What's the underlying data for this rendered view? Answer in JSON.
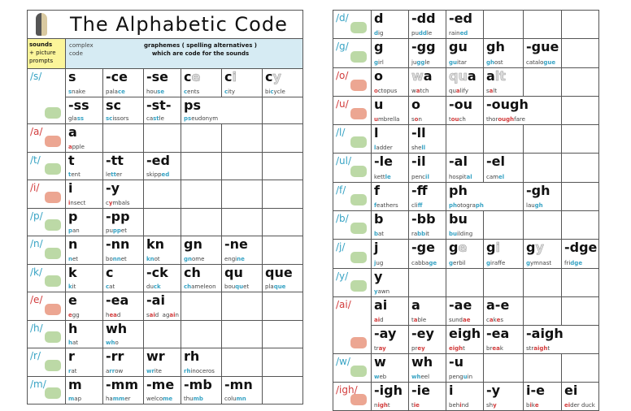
{
  "title": "The Alphabetic Code",
  "header": {
    "sounds": "sounds",
    "picture_prompts": "+ picture prompts",
    "complex_code": "complex code",
    "graphemes_line1": "graphemes ( spelling alternatives )",
    "graphemes_line2": "which are code for the sounds"
  },
  "colors": {
    "consonant": "#37a3c4",
    "vowel": "#d23c3c",
    "header_yellow": "#fbf59a",
    "header_blue": "#d6ebf3"
  },
  "left_rows": [
    {
      "sound": "/s/",
      "type": "consonant",
      "picture": "snake-icon",
      "subrows": [
        [
          {
            "g": "s",
            "w": [
              "",
              "s",
              "nake"
            ]
          },
          {
            "g": "-ce",
            "w": [
              "pala",
              "ce"
            ]
          },
          {
            "g": "-se",
            "w": [
              "hou",
              "se"
            ]
          },
          {
            "g": "c",
            "gf": "e",
            "w": [
              "",
              "c",
              "ents"
            ]
          },
          {
            "g": "c",
            "gf": "i",
            "w": [
              "",
              "c",
              "ity"
            ]
          },
          {
            "g": "c",
            "gf": "y",
            "w": [
              "bi",
              "c",
              "ycle"
            ]
          }
        ],
        [
          {
            "g": "-ss",
            "w": [
              "gla",
              "ss"
            ]
          },
          {
            "g": "sc",
            "w": [
              "",
              "sc",
              "issors"
            ]
          },
          {
            "g": "-st-",
            "w": [
              "ca",
              "st",
              "le"
            ]
          },
          {
            "g": "ps",
            "w": [
              "",
              "ps",
              "eudonym"
            ],
            "span": 2
          },
          {}
        ]
      ]
    },
    {
      "sound": "/a/",
      "type": "vowel",
      "picture": "apple-icon",
      "subrows": [
        [
          {
            "g": "a",
            "w": [
              "",
              "a",
              "pple"
            ]
          },
          {},
          {},
          {},
          {},
          {}
        ]
      ]
    },
    {
      "sound": "/t/",
      "type": "consonant",
      "picture": "tent-icon",
      "subrows": [
        [
          {
            "g": "t",
            "w": [
              "",
              "t",
              "ent"
            ]
          },
          {
            "g": "-tt",
            "w": [
              "le",
              "tt",
              "er"
            ]
          },
          {
            "g": "-ed",
            "w": [
              "skipp",
              "ed"
            ]
          },
          {},
          {},
          {}
        ]
      ]
    },
    {
      "sound": "/i/",
      "type": "vowel",
      "picture": "insect-icon",
      "subrows": [
        [
          {
            "g": "i",
            "w": [
              "",
              "i",
              "nsect"
            ]
          },
          {
            "g": "-y",
            "w": [
              "c",
              "y",
              "mbals"
            ]
          },
          {},
          {},
          {},
          {}
        ]
      ]
    },
    {
      "sound": "/p/",
      "type": "consonant",
      "picture": "pan-icon",
      "subrows": [
        [
          {
            "g": "p",
            "w": [
              "",
              "p",
              "an"
            ]
          },
          {
            "g": "-pp",
            "w": [
              "pu",
              "pp",
              "et"
            ]
          },
          {},
          {},
          {},
          {}
        ]
      ]
    },
    {
      "sound": "/n/",
      "type": "consonant",
      "picture": "net-icon",
      "subrows": [
        [
          {
            "g": "n",
            "w": [
              "",
              "n",
              "et"
            ]
          },
          {
            "g": "-nn",
            "w": [
              "bo",
              "nn",
              "et"
            ]
          },
          {
            "g": "kn",
            "w": [
              "",
              "kn",
              "ot"
            ]
          },
          {
            "g": "gn",
            "w": [
              "",
              "gn",
              "ome"
            ]
          },
          {
            "g": "-ne",
            "w": [
              "engi",
              "ne"
            ]
          },
          {}
        ]
      ]
    },
    {
      "sound": "/k/",
      "type": "consonant",
      "picture": "kit-icon",
      "subrows": [
        [
          {
            "g": "k",
            "w": [
              "",
              "k",
              "it"
            ]
          },
          {
            "g": "c",
            "w": [
              "",
              "c",
              "at"
            ]
          },
          {
            "g": "-ck",
            "w": [
              "du",
              "ck"
            ]
          },
          {
            "g": "ch",
            "w": [
              "",
              "ch",
              "ameleon"
            ]
          },
          {
            "g": "qu",
            "w": [
              "bou",
              "qu",
              "et"
            ]
          },
          {
            "g": "que",
            "w": [
              "pla",
              "que"
            ]
          }
        ]
      ]
    },
    {
      "sound": "/e/",
      "type": "vowel",
      "picture": "egg-icon",
      "subrows": [
        [
          {
            "g": "e",
            "w": [
              "",
              "e",
              "gg"
            ]
          },
          {
            "g": "-ea",
            "w": [
              "h",
              "ea",
              "d"
            ]
          },
          {
            "g": "-ai",
            "w": [
              "s",
              "ai",
              "d  ag",
              "ai",
              "n"
            ]
          },
          {},
          {},
          {}
        ]
      ]
    },
    {
      "sound": "/h/",
      "type": "consonant",
      "picture": "hat-icon",
      "subrows": [
        [
          {
            "g": "h",
            "w": [
              "",
              "h",
              "at"
            ]
          },
          {
            "g": "wh",
            "w": [
              "",
              "wh",
              "o"
            ]
          },
          {},
          {},
          {},
          {}
        ]
      ]
    },
    {
      "sound": "/r/",
      "type": "consonant",
      "picture": "rat-icon",
      "subrows": [
        [
          {
            "g": "r",
            "w": [
              "",
              "r",
              "at"
            ]
          },
          {
            "g": "-rr",
            "w": [
              "a",
              "rr",
              "ow"
            ]
          },
          {
            "g": "wr",
            "w": [
              "",
              "wr",
              "ite"
            ]
          },
          {
            "g": "rh",
            "w": [
              "",
              "rh",
              "inoceros"
            ]
          },
          {},
          {}
        ]
      ]
    },
    {
      "sound": "/m/",
      "type": "consonant",
      "picture": "map-icon",
      "subrows": [
        [
          {
            "g": "m",
            "w": [
              "",
              "m",
              "ap"
            ]
          },
          {
            "g": "-mm",
            "w": [
              "ha",
              "mm",
              "er"
            ]
          },
          {
            "g": "-me",
            "w": [
              "welco",
              "me"
            ]
          },
          {
            "g": "-mb",
            "w": [
              "thu",
              "mb"
            ]
          },
          {
            "g": "-mn",
            "w": [
              "colu",
              "mn"
            ]
          },
          {}
        ]
      ]
    }
  ],
  "right_rows": [
    {
      "sound": "/d/",
      "type": "consonant",
      "picture": "dig-icon",
      "subrows": [
        [
          {
            "g": "d",
            "w": [
              "",
              "d",
              "ig"
            ]
          },
          {
            "g": "-dd",
            "w": [
              "pu",
              "dd",
              "le"
            ]
          },
          {
            "g": "-ed",
            "w": [
              "rain",
              "ed"
            ]
          },
          {},
          {},
          {}
        ]
      ]
    },
    {
      "sound": "/g/",
      "type": "consonant",
      "picture": "girl-icon",
      "subrows": [
        [
          {
            "g": "g",
            "w": [
              "",
              "g",
              "irl"
            ]
          },
          {
            "g": "-gg",
            "w": [
              "ju",
              "gg",
              "le"
            ]
          },
          {
            "g": "gu",
            "w": [
              "",
              "gu",
              "itar"
            ]
          },
          {
            "g": "gh",
            "w": [
              "",
              "gh",
              "ost"
            ]
          },
          {
            "g": "-gue",
            "w": [
              "catalo",
              "gue"
            ]
          },
          {}
        ]
      ]
    },
    {
      "sound": "/o/",
      "type": "vowel",
      "picture": "octopus-icon",
      "subrows": [
        [
          {
            "g": "o",
            "w": [
              "",
              "o",
              "ctopus"
            ]
          },
          {
            "gp": "w",
            "g": "a",
            "w": [
              "w",
              "a",
              "tch"
            ]
          },
          {
            "gp": "qu",
            "g": "a",
            "w": [
              "qu",
              "a",
              "lify"
            ]
          },
          {
            "g": "a",
            "gf": "lt",
            "w": [
              "s",
              "a",
              "lt"
            ]
          },
          {},
          {}
        ]
      ]
    },
    {
      "sound": "/u/",
      "type": "vowel",
      "picture": "umbrella-icon",
      "subrows": [
        [
          {
            "g": "u",
            "w": [
              "",
              "u",
              "mbrella"
            ]
          },
          {
            "g": "o",
            "w": [
              "s",
              "o",
              "n"
            ]
          },
          {
            "g": "-ou",
            "w": [
              "t",
              "ou",
              "ch"
            ]
          },
          {
            "g": "-ough",
            "w": [
              "thor",
              "ough",
              "fare"
            ],
            "span": 2
          },
          {},
          {}
        ]
      ]
    },
    {
      "sound": "/l/",
      "type": "consonant",
      "picture": "ladder-icon",
      "subrows": [
        [
          {
            "g": "l",
            "w": [
              "",
              "l",
              "adder"
            ]
          },
          {
            "g": "-ll",
            "w": [
              "she",
              "ll"
            ]
          },
          {},
          {},
          {},
          {}
        ]
      ]
    },
    {
      "sound": "/ul/",
      "type": "consonant",
      "picture": "kettle-icon",
      "subrows": [
        [
          {
            "g": "-le",
            "w": [
              "kett",
              "le"
            ]
          },
          {
            "g": "-il",
            "w": [
              "penc",
              "il"
            ]
          },
          {
            "g": "-al",
            "w": [
              "hospit",
              "al"
            ]
          },
          {
            "g": "-el",
            "w": [
              "cam",
              "el"
            ]
          },
          {},
          {}
        ]
      ]
    },
    {
      "sound": "/f/",
      "type": "consonant",
      "picture": "feathers-icon",
      "subrows": [
        [
          {
            "g": "f",
            "w": [
              "",
              "f",
              "eathers"
            ]
          },
          {
            "g": "-ff",
            "w": [
              "cli",
              "ff"
            ]
          },
          {
            "g": "ph",
            "w": [
              "",
              "ph",
              "otogra",
              "ph"
            ],
            "span": 2
          },
          {
            "g": "-gh",
            "w": [
              "lau",
              "gh"
            ]
          },
          {}
        ]
      ]
    },
    {
      "sound": "/b/",
      "type": "consonant",
      "picture": "bat-icon",
      "subrows": [
        [
          {
            "g": "b",
            "w": [
              "",
              "b",
              "at"
            ]
          },
          {
            "g": "-bb",
            "w": [
              "ra",
              "bb",
              "it"
            ]
          },
          {
            "g": "bu",
            "w": [
              "",
              "bu",
              "ilding"
            ]
          },
          {},
          {},
          {}
        ]
      ]
    },
    {
      "sound": "/j/",
      "type": "consonant",
      "picture": "jug-icon",
      "subrows": [
        [
          {
            "g": "j",
            "w": [
              "",
              "j",
              "ug"
            ]
          },
          {
            "g": "-ge",
            "w": [
              "cabba",
              "ge"
            ]
          },
          {
            "g": "g",
            "gf": "e",
            "w": [
              "",
              "g",
              "erbil"
            ]
          },
          {
            "g": "g",
            "gf": "i",
            "w": [
              "",
              "g",
              "iraffe"
            ]
          },
          {
            "g": "g",
            "gf": "y",
            "w": [
              "",
              "g",
              "ymnast"
            ]
          },
          {
            "g": "-dge",
            "w": [
              "fri",
              "dge"
            ]
          }
        ]
      ]
    },
    {
      "sound": "/y/",
      "type": "consonant",
      "picture": "yawn-icon",
      "subrows": [
        [
          {
            "g": "y",
            "w": [
              "",
              "y",
              "awn"
            ]
          },
          {},
          {},
          {},
          {},
          {}
        ]
      ]
    },
    {
      "sound": "/ai/",
      "type": "vowel",
      "picture": "aid-kit-icon",
      "subrows": [
        [
          {
            "g": "ai",
            "w": [
              "",
              "ai",
              "d"
            ]
          },
          {
            "g": "a",
            "w": [
              "t",
              "a",
              "ble"
            ]
          },
          {
            "g": "-ae",
            "w": [
              "sund",
              "ae"
            ]
          },
          {
            "g": "a-e",
            "w": [
              "c",
              "a",
              "k",
              "e",
              "s"
            ]
          },
          {},
          {}
        ],
        [
          {
            "g": "-ay",
            "w": [
              "tr",
              "ay"
            ]
          },
          {
            "g": "-ey",
            "w": [
              "pr",
              "ey"
            ]
          },
          {
            "g": "eigh",
            "w": [
              "",
              "eigh",
              "t"
            ]
          },
          {
            "g": "-ea",
            "w": [
              "br",
              "ea",
              "k"
            ]
          },
          {
            "g": "-aigh",
            "w": [
              "str",
              "aigh",
              "t"
            ],
            "span": 2
          },
          {}
        ]
      ]
    },
    {
      "sound": "/w/",
      "type": "consonant",
      "picture": "web-icon",
      "subrows": [
        [
          {
            "g": "w",
            "w": [
              "",
              "w",
              "eb"
            ]
          },
          {
            "g": "wh",
            "w": [
              "",
              "wh",
              "eel"
            ]
          },
          {
            "g": "-u",
            "w": [
              "peng",
              "u",
              "in"
            ]
          },
          {},
          {},
          {}
        ]
      ]
    },
    {
      "sound": "/igh/",
      "type": "vowel",
      "picture": "night-icon",
      "subrows": [
        [
          {
            "g": "-igh",
            "w": [
              "n",
              "igh",
              "t"
            ]
          },
          {
            "g": "-ie",
            "w": [
              "t",
              "ie"
            ]
          },
          {
            "g": "i",
            "w": [
              "beh",
              "i",
              "nd"
            ]
          },
          {
            "g": "-y",
            "w": [
              "sh",
              "y"
            ]
          },
          {
            "g": "i-e",
            "w": [
              "b",
              "i",
              "k",
              "e"
            ]
          },
          {
            "g": "ei",
            "w": [
              "",
              "ei",
              "der duck"
            ]
          }
        ]
      ]
    }
  ]
}
